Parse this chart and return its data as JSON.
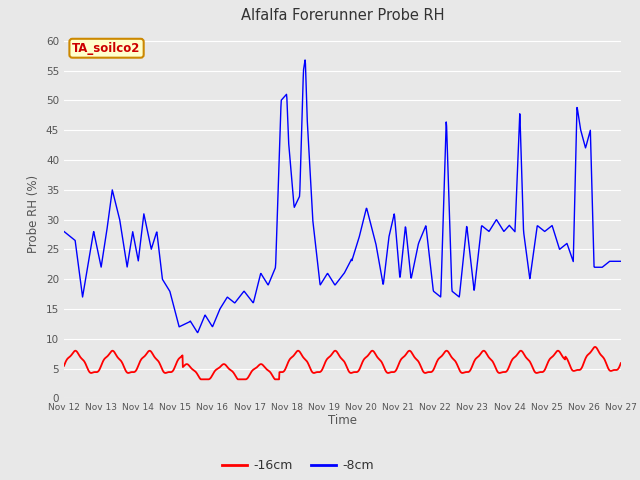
{
  "title": "Alfalfa Forerunner Probe RH",
  "xlabel": "Time",
  "ylabel": "Probe RH (%)",
  "ylim": [
    0,
    62
  ],
  "yticks": [
    0,
    5,
    10,
    15,
    20,
    25,
    30,
    35,
    40,
    45,
    50,
    55,
    60
  ],
  "bg_color": "#e8e8e8",
  "plot_bg_color": "#e8e8e8",
  "legend_bg_color": "#ffffff",
  "line_color_blue": "#0000ff",
  "line_color_red": "#ff0000",
  "legend_labels": [
    "-16cm",
    "-8cm"
  ],
  "annotation_text": "TA_soilco2",
  "annotation_bg": "#ffffcc",
  "annotation_border": "#cc8800",
  "annotation_text_color": "#cc0000",
  "grid_color": "#ffffff",
  "tick_color": "#555555",
  "spine_color": "#aaaaaa"
}
